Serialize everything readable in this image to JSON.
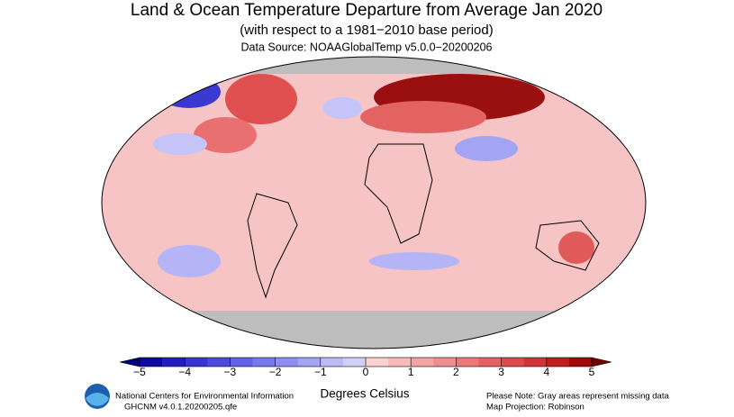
{
  "header": {
    "title": "Land & Ocean Temperature Departure from Average Jan 2020",
    "subtitle": "(with respect to a 1981−2010 base period)",
    "source": "Data Source: NOAAGlobalTemp v5.0.0−20200206"
  },
  "colorbar": {
    "label": "Degrees Celsius",
    "lim": [
      -5,
      5
    ],
    "ticks": [
      {
        "value": -5,
        "label": "−5"
      },
      {
        "value": -4,
        "label": "−4"
      },
      {
        "value": -3,
        "label": "−3"
      },
      {
        "value": -2,
        "label": "−2"
      },
      {
        "value": -1,
        "label": "−1"
      },
      0,
      1,
      2,
      3,
      4,
      5
    ],
    "colors": [
      "#0a0aa0",
      "#1f1fc0",
      "#3535d0",
      "#4b4bdb",
      "#6262e3",
      "#7878ea",
      "#8e8ef0",
      "#a4a4f4",
      "#babaf7",
      "#d0d0fa",
      "#fad0d0",
      "#f7baba",
      "#f4a4a4",
      "#f08e8e",
      "#ea7878",
      "#e36262",
      "#db4b4b",
      "#d03535",
      "#c01f1f",
      "#a00a0a"
    ],
    "under_color": "#000080",
    "over_color": "#700000"
  },
  "footer": {
    "org": "National Centers for Environmental Information",
    "version": "GHCNM v4.0.1.20200205.qfe",
    "note": "Please Note: Gray areas represent missing data",
    "projection": "Map Projection: Robinson"
  }
}
